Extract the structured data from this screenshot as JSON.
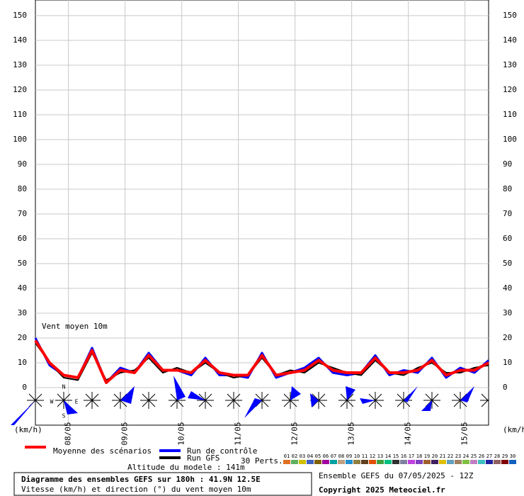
{
  "chart_data": {
    "type": "line",
    "title": "Diagramme des ensembles GEFS sur 180h : 41.9N 12.5E",
    "subtitle": "Vitesse (km/h) et direction (°) du vent moyen 10m",
    "annotation": "Vent moyen 10m",
    "y_label_left": "(km/h)",
    "y_label_right": "(km/h)",
    "run_info": "Ensemble GEFS du 07/05/2025 - 12Z",
    "copyright": "Copyright 2025 Meteociel.fr",
    "altitude": "Altitude du modele : 141m",
    "perts_label": "30 Perts.",
    "compass": [
      "N",
      "W",
      "E",
      "S"
    ],
    "x": [
      0,
      6,
      12,
      18,
      24,
      30,
      36,
      42,
      48,
      54,
      60,
      66,
      72,
      78,
      84,
      90,
      96,
      102,
      108,
      114,
      120,
      126,
      132,
      138,
      144,
      150,
      156,
      162,
      168,
      174,
      180,
      186,
      192
    ],
    "xlim": [
      0,
      192
    ],
    "xticks": [
      {
        "value": 14,
        "label": "08/05"
      },
      {
        "value": 38,
        "label": "09/05"
      },
      {
        "value": 62,
        "label": "10/05"
      },
      {
        "value": 86,
        "label": "11/05"
      },
      {
        "value": 110,
        "label": "12/05"
      },
      {
        "value": 134,
        "label": "13/05"
      },
      {
        "value": 158,
        "label": "14/05"
      },
      {
        "value": 182,
        "label": "15/05"
      }
    ],
    "ylim": [
      0,
      150
    ],
    "yticks": [
      0,
      10,
      20,
      30,
      40,
      50,
      60,
      70,
      80,
      90,
      100,
      110,
      120,
      130,
      140,
      150
    ],
    "grid": true,
    "series": [
      {
        "name": "Run de contrôle",
        "color": "#0000ff",
        "width": 3,
        "values": [
          20,
          9,
          5,
          4,
          16,
          2,
          8,
          6,
          14,
          7,
          7,
          5,
          12,
          5,
          5,
          4,
          14,
          4,
          6,
          8,
          12,
          6,
          5,
          6,
          13,
          5,
          7,
          6,
          12,
          4,
          8,
          6,
          11
        ]
      },
      {
        "name": "Run GFS",
        "color": "#000000",
        "width": 2,
        "values": [
          18,
          10,
          4,
          3,
          14,
          3,
          6,
          7,
          12,
          6,
          8,
          6,
          10,
          6,
          4,
          5,
          12,
          5,
          7,
          6,
          10,
          8,
          6,
          5,
          11,
          6,
          5,
          8,
          10,
          6,
          6,
          8,
          9
        ]
      },
      {
        "name": "Moyenne des scénarios",
        "color": "#ff0000",
        "width": 4,
        "values": [
          19,
          10,
          5,
          4,
          15,
          2,
          7,
          6,
          13,
          7,
          7,
          6,
          11,
          6,
          5,
          5,
          13,
          5,
          6,
          7,
          11,
          7,
          6,
          6,
          12,
          6,
          6,
          7,
          11,
          5,
          7,
          7,
          10
        ]
      }
    ],
    "perturbations": [
      {
        "label": "01",
        "color": "#e07020"
      },
      {
        "label": "02",
        "color": "#60b060"
      },
      {
        "label": "03",
        "color": "#d0c000"
      },
      {
        "label": "04",
        "color": "#4060c0"
      },
      {
        "label": "05",
        "color": "#806000"
      },
      {
        "label": "06",
        "color": "#a000a0"
      },
      {
        "label": "07",
        "color": "#00a0a0"
      },
      {
        "label": "08",
        "color": "#c0a080"
      },
      {
        "label": "09",
        "color": "#2090d0"
      },
      {
        "label": "10",
        "color": "#908040"
      },
      {
        "label": "11",
        "color": "#604020"
      },
      {
        "label": "12",
        "color": "#e05000"
      },
      {
        "label": "13",
        "color": "#40a040"
      },
      {
        "label": "14",
        "color": "#00c080"
      },
      {
        "label": "15",
        "color": "#303030"
      },
      {
        "label": "16",
        "color": "#8080a0"
      },
      {
        "label": "17",
        "color": "#c040e0"
      },
      {
        "label": "18",
        "color": "#8040c0"
      },
      {
        "label": "19",
        "color": "#a06030"
      },
      {
        "label": "20",
        "color": "#402060"
      },
      {
        "label": "21",
        "color": "#e0c000"
      },
      {
        "label": "22",
        "color": "#60a0c0"
      },
      {
        "label": "23",
        "color": "#a08060"
      },
      {
        "label": "24",
        "color": "#80c040"
      },
      {
        "label": "25",
        "color": "#c080c0"
      },
      {
        "label": "26",
        "color": "#40c0c0"
      },
      {
        "label": "27",
        "color": "#2020a0"
      },
      {
        "label": "28",
        "color": "#906060"
      },
      {
        "label": "29",
        "color": "#800000"
      },
      {
        "label": "30",
        "color": "#1060c0"
      }
    ]
  }
}
